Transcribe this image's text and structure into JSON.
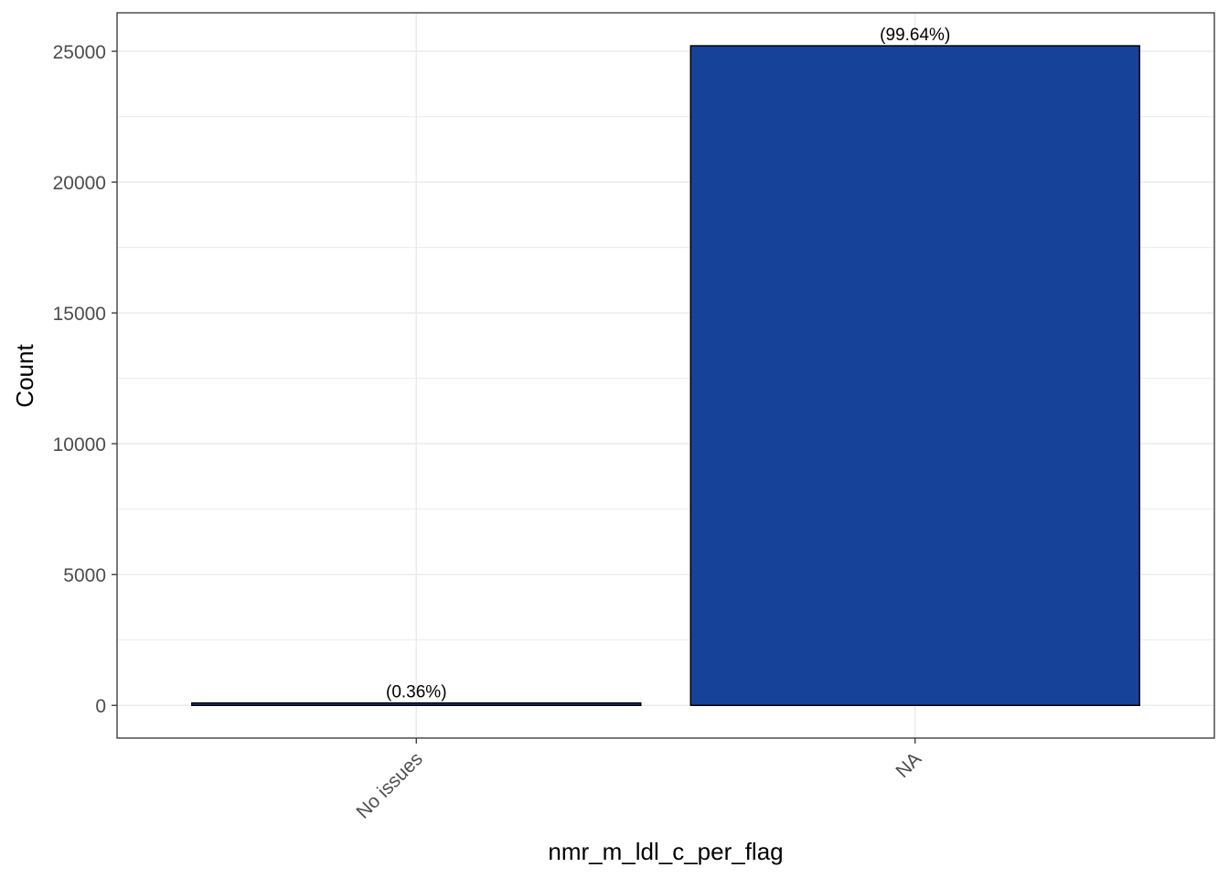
{
  "chart_data": {
    "type": "bar",
    "title": "",
    "xlabel": "nmr_m_ldl_c_per_flag",
    "ylabel": "Count",
    "categories": [
      "No issues",
      "NA"
    ],
    "values": [
      91,
      25209
    ],
    "data_labels": [
      "(0.36%)",
      "(99.64%)"
    ],
    "ylim": [
      -1250,
      26470
    ],
    "yticks": [
      0,
      5000,
      10000,
      15000,
      20000,
      25000
    ],
    "ytick_labels": [
      "0",
      "5000",
      "10000",
      "15000",
      "20000",
      "25000"
    ],
    "grid": true,
    "legend": "none",
    "colors": {
      "bar_fill": "#17429A",
      "bar_stroke": "#000000",
      "grid": "#EBEBEB",
      "panel_border": "#333333"
    }
  }
}
